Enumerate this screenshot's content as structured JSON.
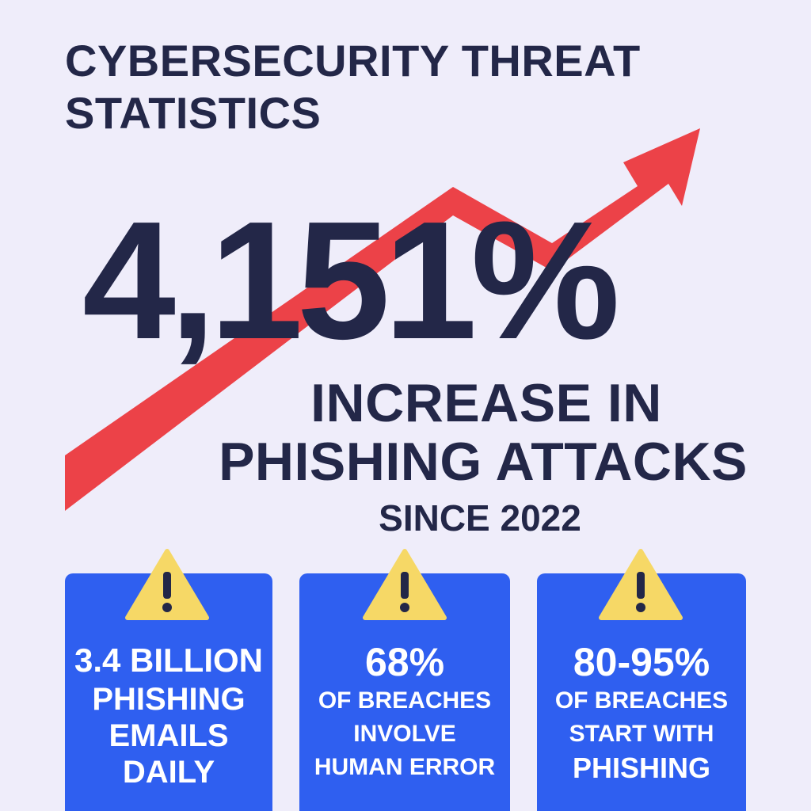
{
  "title": {
    "line1": "CYBERSECURITY THREAT",
    "line2": "STATISTICS"
  },
  "headline": {
    "value": "4,151%",
    "line1": "INCREASE IN",
    "line2": "PHISHING ATTACKS",
    "line3": "SINCE 2022"
  },
  "cards": [
    {
      "stat": "3.4 BILLION",
      "line1": "PHISHING",
      "line2": "EMAILS",
      "line3": "DAILY"
    },
    {
      "stat": "68%",
      "line1": "OF BREACHES",
      "line2": "INVOLVE",
      "line3": "HUMAN ERROR"
    },
    {
      "stat": "80-95%",
      "line1": "OF BREACHES",
      "line2": "START WITH",
      "line3": "PHISHING"
    }
  ],
  "icons": {
    "trend": "trend-up-arrow-icon",
    "warning": "warning-icon"
  },
  "colors": {
    "background": "#efedfa",
    "text": "#232748",
    "arrow": "#ec4248",
    "card": "#2f5ff0",
    "warning": "#f6d866"
  }
}
